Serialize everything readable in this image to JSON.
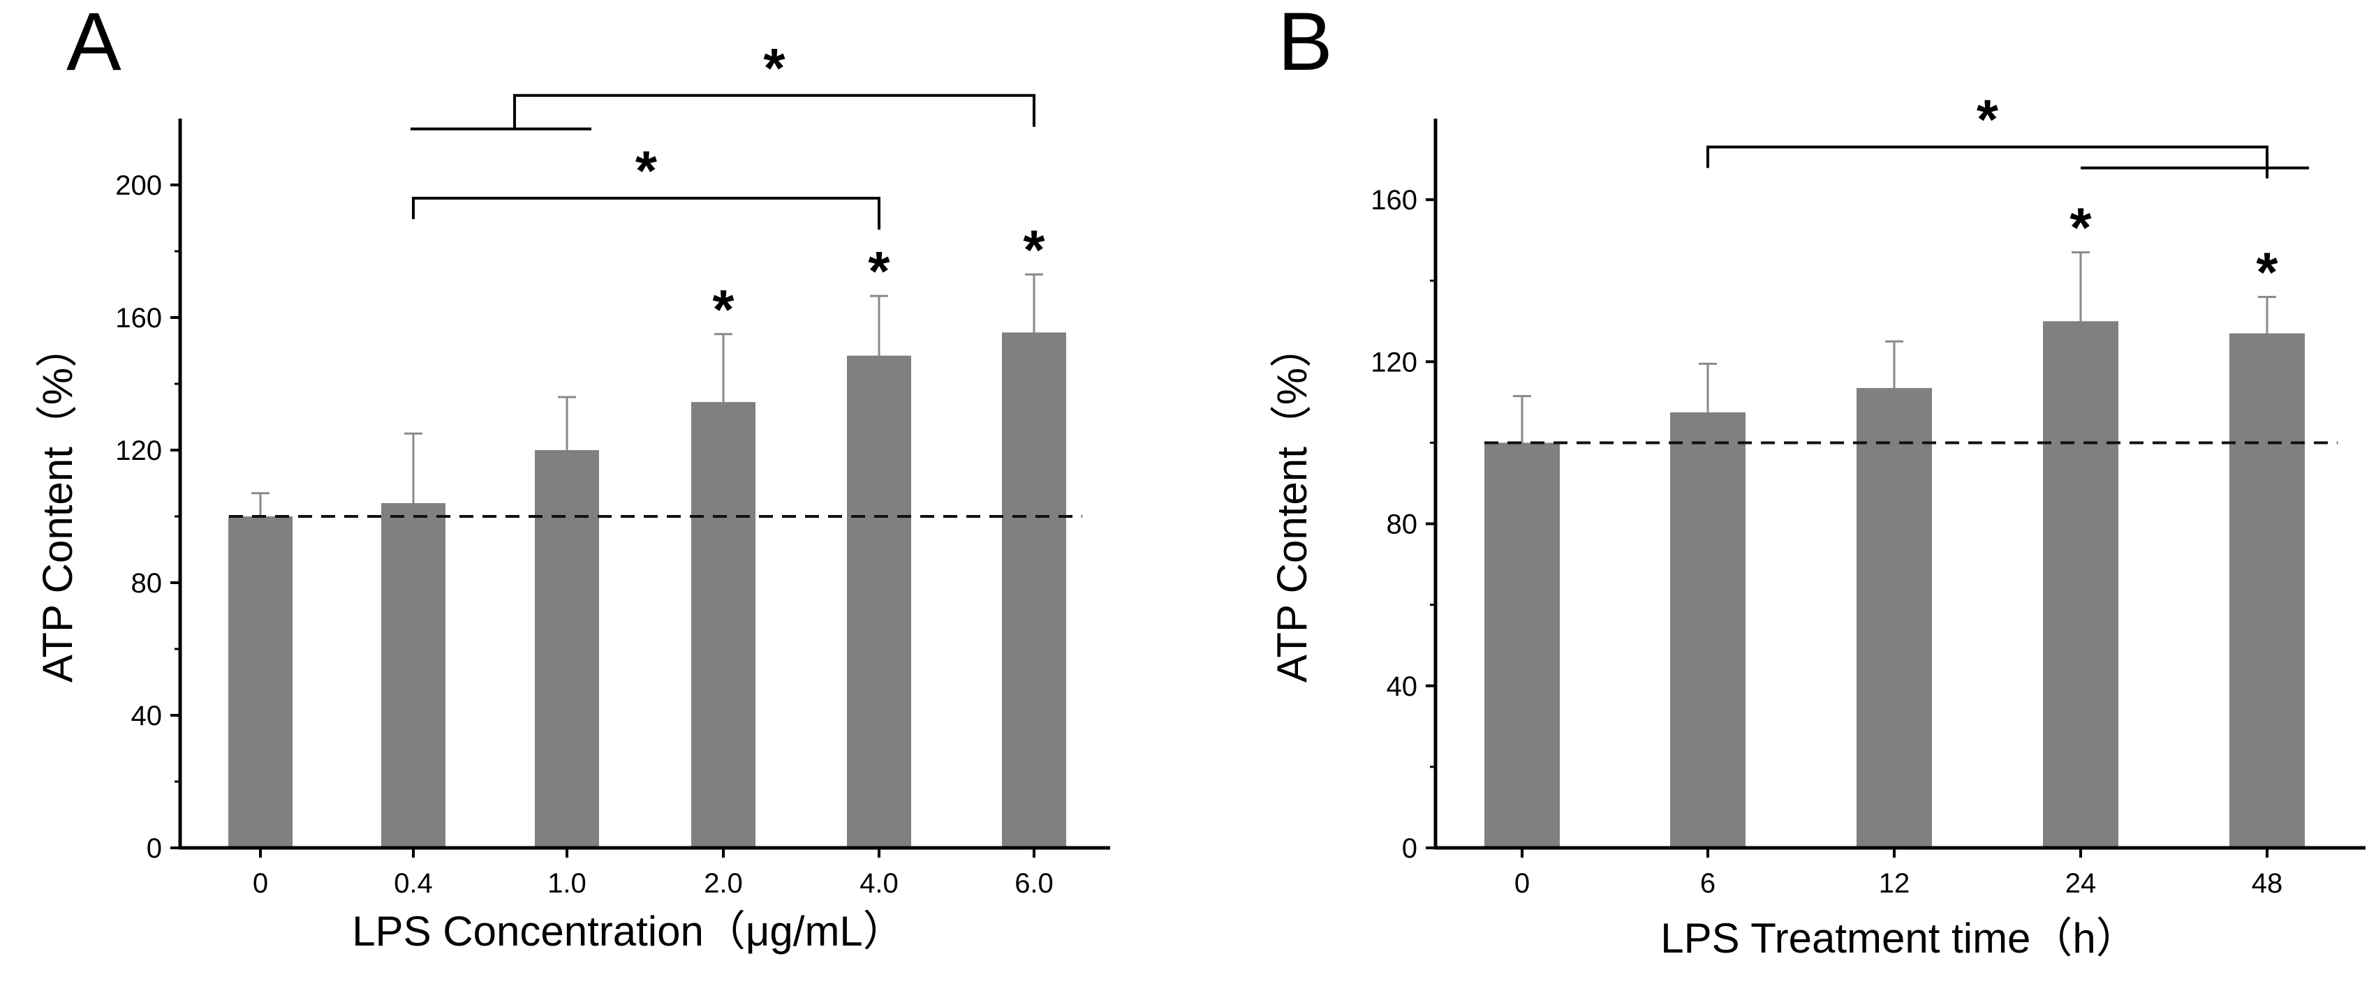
{
  "chart_data": [
    {
      "type": "bar",
      "panel_label": "A",
      "categories": [
        "0",
        "0.4",
        "1.0",
        "2.0",
        "4.0",
        "6.0"
      ],
      "values": [
        100,
        104,
        120,
        134.5,
        148.5,
        155.5
      ],
      "errors": [
        7,
        21,
        16,
        20.5,
        18,
        17.5
      ],
      "significance": [
        "",
        "",
        "",
        "*",
        "*",
        "*"
      ],
      "xlabel": "LPS Concentration（μg/mL）",
      "ylabel": "ATP Content（%）",
      "ylim": [
        0,
        220
      ],
      "yticks": [
        0,
        40,
        80,
        120,
        160,
        200
      ],
      "ytick_labels": [
        "0",
        "40",
        "80",
        "120",
        "160",
        "200"
      ],
      "baseline": 100,
      "brackets": [
        {
          "label": "*",
          "span": [
            "0.4",
            "4.0"
          ],
          "y": 196
        },
        {
          "label": "*",
          "span": [
            "0.4",
            "6.0"
          ],
          "y": 227,
          "tail_to": "1.0"
        }
      ]
    },
    {
      "type": "bar",
      "panel_label": "B",
      "categories": [
        "0",
        "6",
        "12",
        "24",
        "48"
      ],
      "values": [
        100,
        107.5,
        113.5,
        130,
        127
      ],
      "errors": [
        11.5,
        12,
        11.5,
        17,
        9
      ],
      "significance": [
        "",
        "",
        "",
        "*",
        "*"
      ],
      "xlabel": "LPS Treatment time（h）",
      "ylabel": "ATP Content（%）",
      "ylim": [
        0,
        180
      ],
      "yticks": [
        0,
        40,
        80,
        120,
        160
      ],
      "ytick_labels": [
        "0",
        "40",
        "80",
        "120",
        "160"
      ],
      "baseline": 100,
      "brackets": [
        {
          "label": "*",
          "span": [
            "6",
            "48"
          ],
          "y": 173,
          "tail_from": "24"
        }
      ]
    }
  ]
}
